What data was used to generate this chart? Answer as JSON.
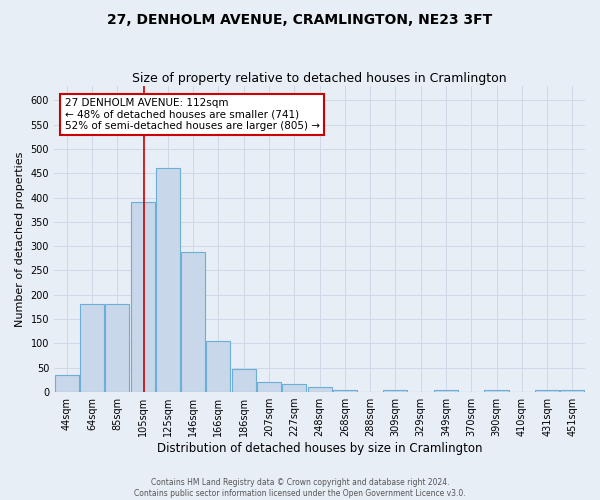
{
  "title": "27, DENHOLM AVENUE, CRAMLINGTON, NE23 3FT",
  "subtitle": "Size of property relative to detached houses in Cramlington",
  "xlabel": "Distribution of detached houses by size in Cramlington",
  "ylabel": "Number of detached properties",
  "footer_line1": "Contains HM Land Registry data © Crown copyright and database right 2024.",
  "footer_line2": "Contains public sector information licensed under the Open Government Licence v3.0.",
  "categories": [
    "44sqm",
    "64sqm",
    "85sqm",
    "105sqm",
    "125sqm",
    "146sqm",
    "166sqm",
    "186sqm",
    "207sqm",
    "227sqm",
    "248sqm",
    "268sqm",
    "288sqm",
    "309sqm",
    "329sqm",
    "349sqm",
    "370sqm",
    "390sqm",
    "410sqm",
    "431sqm",
    "451sqm"
  ],
  "bar_values": [
    35,
    182,
    182,
    390,
    460,
    287,
    105,
    48,
    20,
    16,
    10,
    5,
    0,
    5,
    0,
    5,
    0,
    5,
    0,
    5,
    5
  ],
  "bar_color": "#c8d8ea",
  "bar_edge_color": "#6baed6",
  "grid_color": "#d0d8e8",
  "background_color": "#e8eef6",
  "red_line_color": "#cc0000",
  "annotation_text": "27 DENHOLM AVENUE: 112sqm\n← 48% of detached houses are smaller (741)\n52% of semi-detached houses are larger (805) →",
  "annotation_box_color": "#ffffff",
  "annotation_border_color": "#cc0000",
  "ylim": [
    0,
    630
  ],
  "yticks": [
    0,
    50,
    100,
    150,
    200,
    250,
    300,
    350,
    400,
    450,
    500,
    550,
    600
  ],
  "title_fontsize": 10,
  "subtitle_fontsize": 9,
  "xlabel_fontsize": 8.5,
  "ylabel_fontsize": 8,
  "tick_fontsize": 7,
  "annotation_fontsize": 7.5,
  "footer_fontsize": 5.5
}
